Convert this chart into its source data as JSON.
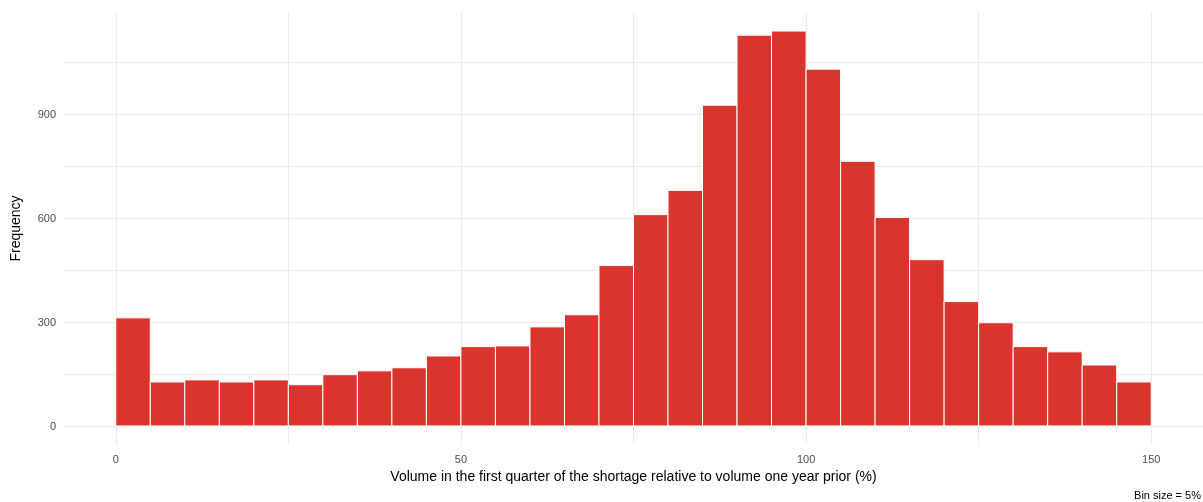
{
  "chart_data": {
    "type": "histogram",
    "xlabel": "Volume in the first quarter of the shortage relative to volume one year prior (%)",
    "ylabel": "Frequency",
    "bins": [
      0,
      5,
      10,
      15,
      20,
      25,
      30,
      35,
      40,
      45,
      50,
      55,
      60,
      65,
      70,
      75,
      80,
      85,
      90,
      95,
      100,
      105,
      110,
      115,
      120,
      125,
      130,
      135,
      140,
      145,
      150
    ],
    "values": [
      312,
      127,
      133,
      127,
      133,
      119,
      148,
      159,
      168,
      202,
      229,
      231,
      286,
      321,
      463,
      610,
      680,
      926,
      1128,
      1140,
      1030,
      764,
      602,
      480,
      359,
      298,
      229,
      214,
      176,
      127
    ],
    "color": "#d9352e",
    "xlim": [
      -7.5,
      157.5
    ],
    "ylim": [
      -55,
      1195
    ],
    "xticks": [
      0,
      {
        "value": 25,
        "label": null
      },
      50,
      {
        "value": 75,
        "label": null
      },
      100,
      {
        "value": 125,
        "label": null
      },
      150
    ],
    "yticks": [
      0,
      {
        "value": 150,
        "label": null
      },
      300,
      {
        "value": 450,
        "label": null
      },
      600,
      {
        "value": 750,
        "label": null
      },
      900,
      {
        "value": 1050,
        "label": null
      }
    ],
    "grid": true,
    "annotations": [
      "Bin size = 5%"
    ]
  }
}
